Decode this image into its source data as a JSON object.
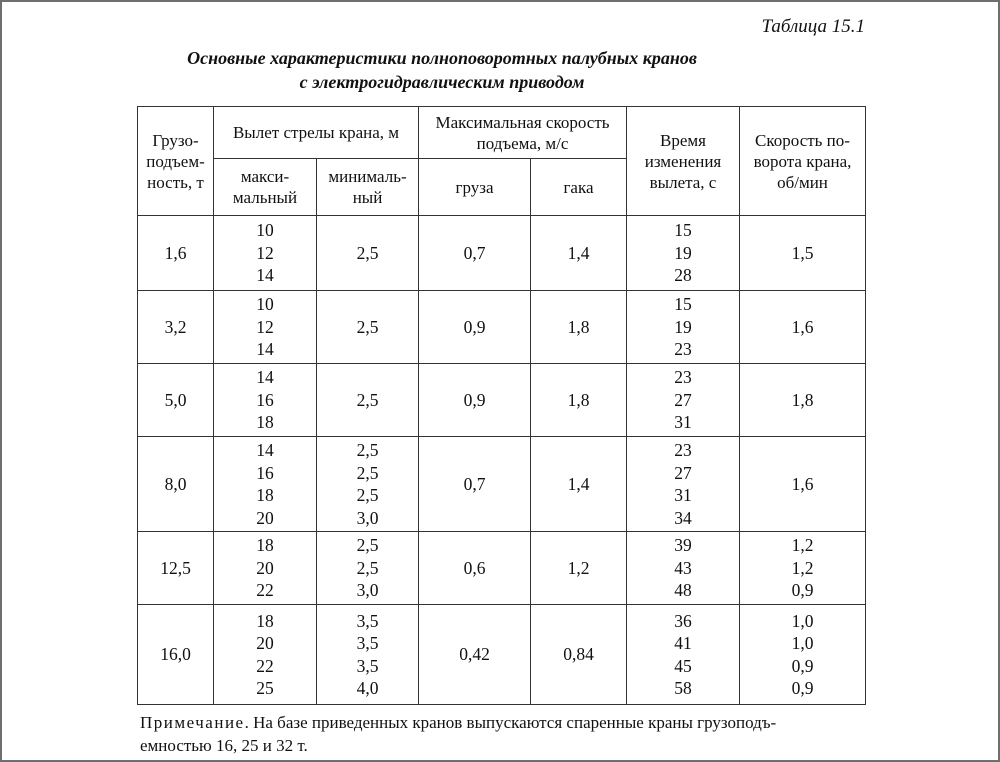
{
  "table_number": "Таблица 15.1",
  "caption": {
    "line1": "Основные характеристики полноповоротных палубных кранов",
    "line2": "с электрогидравлическим приводом"
  },
  "header": {
    "capacity": "Грузо-подъем-ность, т",
    "capacity_lines": [
      "Грузо-",
      "подъем-",
      "ность, т"
    ],
    "boom_reach": "Вылет стрелы крана, м",
    "boom_max_lines": [
      "макси-",
      "мальный"
    ],
    "boom_min_lines": [
      "минималь-",
      "ный"
    ],
    "max_speed_lines": [
      "Максимальная скорость",
      "подъема, м/с"
    ],
    "speed_load": "груза",
    "speed_hook": "гака",
    "reach_time_lines": [
      "Время",
      "изменения",
      "вылета, с"
    ],
    "slew_speed_lines": [
      "Скорость по-",
      "ворота крана,",
      "об/мин"
    ]
  },
  "rows": [
    {
      "capacity": "1,6",
      "reach_max": [
        "10",
        "12",
        "14"
      ],
      "reach_min": [
        "2,5"
      ],
      "speed_load": "0,7",
      "speed_hook": "1,4",
      "reach_time": [
        "15",
        "19",
        "28"
      ],
      "slew_speed": [
        "1,5"
      ]
    },
    {
      "capacity": "3,2",
      "reach_max": [
        "10",
        "12",
        "14"
      ],
      "reach_min": [
        "2,5"
      ],
      "speed_load": "0,9",
      "speed_hook": "1,8",
      "reach_time": [
        "15",
        "19",
        "23"
      ],
      "slew_speed": [
        "1,6"
      ]
    },
    {
      "capacity": "5,0",
      "reach_max": [
        "14",
        "16",
        "18"
      ],
      "reach_min": [
        "2,5"
      ],
      "speed_load": "0,9",
      "speed_hook": "1,8",
      "reach_time": [
        "23",
        "27",
        "31"
      ],
      "slew_speed": [
        "1,8"
      ]
    },
    {
      "capacity": "8,0",
      "reach_max": [
        "14",
        "16",
        "18",
        "20"
      ],
      "reach_min": [
        "2,5",
        "2,5",
        "2,5",
        "3,0"
      ],
      "speed_load": "0,7",
      "speed_hook": "1,4",
      "reach_time": [
        "23",
        "27",
        "31",
        "34"
      ],
      "slew_speed": [
        "1,6"
      ]
    },
    {
      "capacity": "12,5",
      "reach_max": [
        "18",
        "20",
        "22"
      ],
      "reach_min": [
        "2,5",
        "2,5",
        "3,0"
      ],
      "speed_load": "0,6",
      "speed_hook": "1,2",
      "reach_time": [
        "39",
        "43",
        "48"
      ],
      "slew_speed": [
        "1,2",
        "1,2",
        "0,9"
      ]
    },
    {
      "capacity": "16,0",
      "reach_max": [
        "18",
        "20",
        "22",
        "25"
      ],
      "reach_min": [
        "3,5",
        "3,5",
        "3,5",
        "4,0"
      ],
      "speed_load": "0,42",
      "speed_hook": "0,84",
      "reach_time": [
        "36",
        "41",
        "45",
        "58"
      ],
      "slew_speed": [
        "1,0",
        "1,0",
        "0,9",
        "0,9"
      ]
    }
  ],
  "note": {
    "lead": "Примечание",
    "text": ". На базе приведенных кранов выпускаются спаренные краны грузоподъемностью 16, 25 и 32 т.",
    "line1_rest": ". На базе приведенных кранов выпускаются спаренные краны грузоподъ-",
    "line2": "емностью 16, 25 и 32 т."
  }
}
